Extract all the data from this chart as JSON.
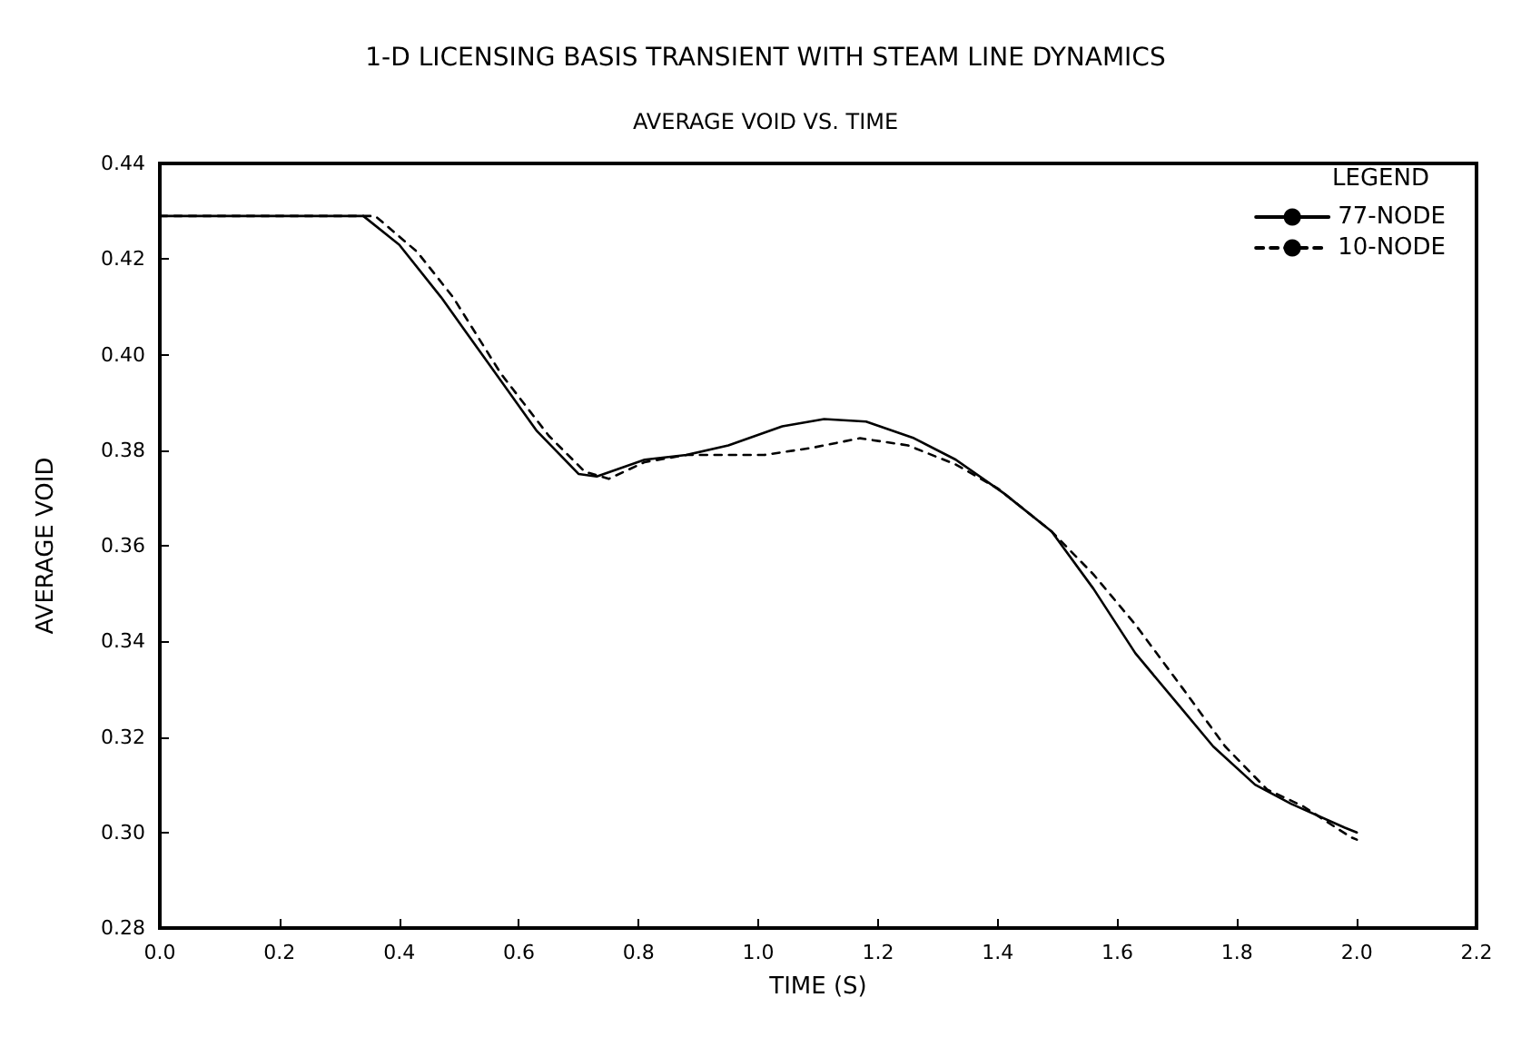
{
  "chart_data": {
    "type": "line",
    "title": "1-D LICENSING BASIS TRANSIENT WITH STEAM LINE DYNAMICS",
    "subtitle": "AVERAGE VOID VS. TIME",
    "xlabel": "TIME (S)",
    "ylabel": "AVERAGE VOID",
    "legend_title": "LEGEND",
    "legend": "top right",
    "grid": false,
    "marker": "none",
    "xlim": [
      0,
      2.2
    ],
    "ylim": [
      0.28,
      0.44
    ],
    "xticks": [
      {
        "value": 0,
        "label": "0.0"
      },
      0.2,
      0.4,
      0.6,
      0.8,
      {
        "value": 1,
        "label": "1.0"
      },
      1.2,
      1.4,
      1.6,
      1.8,
      {
        "value": 2,
        "label": "2.0"
      },
      2.2
    ],
    "yticks": [
      0.28,
      {
        "value": 0.3,
        "label": "0.30"
      },
      0.32,
      0.34,
      0.36,
      0.38,
      {
        "value": 0.4,
        "label": "0.40"
      },
      0.42,
      0.44
    ],
    "series": [
      {
        "name": "77-NODE",
        "color": "#000000",
        "line_style": "solid",
        "x": [
          0,
          0.34,
          0.4,
          0.47,
          0.55,
          0.63,
          0.7,
          0.73,
          0.81,
          0.88,
          0.95,
          1.04,
          1.11,
          1.18,
          1.26,
          1.33,
          1.41,
          1.49,
          1.56,
          1.63,
          1.7,
          1.76,
          1.83,
          1.89,
          1.98,
          2.0
        ],
        "values": [
          0.429,
          0.429,
          0.423,
          0.412,
          0.398,
          0.384,
          0.375,
          0.3745,
          0.378,
          0.379,
          0.381,
          0.385,
          0.3865,
          0.386,
          0.3825,
          0.378,
          0.371,
          0.363,
          0.351,
          0.3375,
          0.327,
          0.318,
          0.31,
          0.306,
          0.301,
          0.3
        ]
      },
      {
        "name": "10-NODE",
        "color": "#000000",
        "line_style": "dashed",
        "x": [
          0,
          0.36,
          0.43,
          0.49,
          0.57,
          0.65,
          0.71,
          0.75,
          0.81,
          0.88,
          0.95,
          1.01,
          1.09,
          1.17,
          1.25,
          1.33,
          1.4,
          1.49,
          1.56,
          1.63,
          1.71,
          1.78,
          1.85,
          1.91,
          1.99,
          2.0
        ],
        "values": [
          0.429,
          0.429,
          0.4215,
          0.412,
          0.396,
          0.383,
          0.3755,
          0.374,
          0.3775,
          0.379,
          0.379,
          0.379,
          0.3805,
          0.3825,
          0.381,
          0.377,
          0.372,
          0.363,
          0.354,
          0.3435,
          0.33,
          0.318,
          0.309,
          0.3055,
          0.299,
          0.2985
        ]
      }
    ]
  }
}
